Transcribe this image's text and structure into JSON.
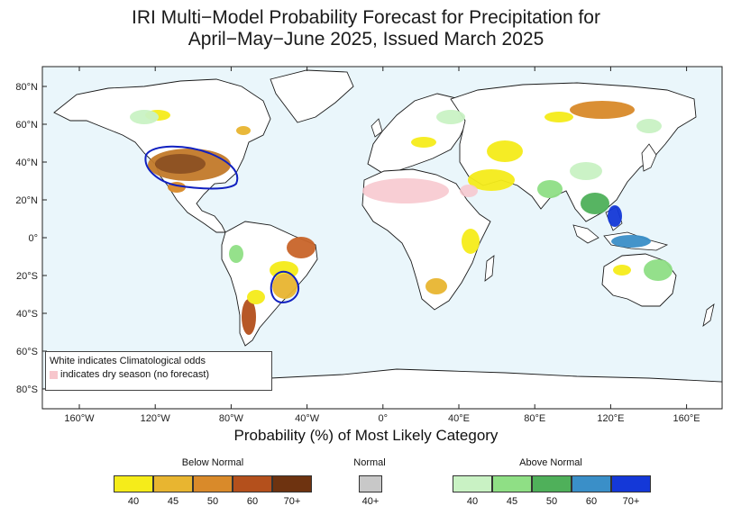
{
  "title_line1": "IRI Multi−Model Probability Forecast for Precipitation for",
  "title_line2": "April−May−June 2025, Issued March 2025",
  "map": {
    "lat_labels": [
      "80°N",
      "60°N",
      "40°N",
      "20°N",
      "0°",
      "20°S",
      "40°S",
      "60°S",
      "80°S"
    ],
    "lon_labels": [
      "160°W",
      "120°W",
      "80°W",
      "40°W",
      "0°",
      "40°E",
      "80°E",
      "120°E",
      "160°E"
    ],
    "colors": {
      "ocean": "#eaf6fb",
      "land": "#ffffff",
      "coast": "#1a1a1a",
      "border": "#9a9a9a",
      "circle": "#1020c0",
      "dry": "#f7c6cc"
    }
  },
  "note": {
    "line1": "White indicates Climatological odds",
    "line2": "indicates dry season (no forecast)"
  },
  "legend": {
    "subtitle": "Probability (%) of Most Likely Category",
    "below": {
      "title": "Below Normal",
      "labels": [
        "40",
        "45",
        "50",
        "60",
        "70+"
      ],
      "colors": [
        "#f5ec1a",
        "#e8b530",
        "#d98a2a",
        "#b4501c",
        "#6e3310"
      ]
    },
    "normal": {
      "title": "Normal",
      "labels": [
        "40+"
      ],
      "colors": [
        "#c8c8c8"
      ]
    },
    "above": {
      "title": "Above Normal",
      "labels": [
        "40",
        "45",
        "50",
        "60",
        "70+"
      ],
      "colors": [
        "#c9f2c4",
        "#8fdf85",
        "#4fb05a",
        "#3a8fc8",
        "#1438d8"
      ]
    }
  }
}
